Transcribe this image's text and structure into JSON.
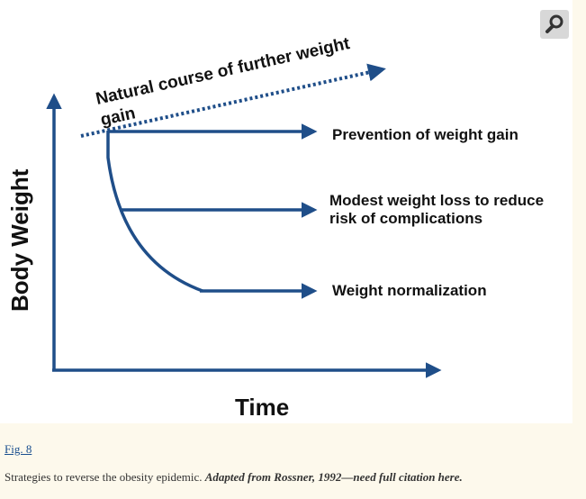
{
  "figure": {
    "texts": {
      "natural_course_line1": "Natural course of further weight",
      "natural_course_line2": "gain",
      "prevention": "Prevention of weight gain",
      "modest_line1": "Modest  weight loss to reduce",
      "modest_line2": "risk of complications",
      "normalization": "Weight normalization",
      "y_axis": "Body Weight",
      "x_axis": "Time"
    },
    "colors": {
      "arrow": "#1f4e89",
      "panel_background": "#ffffff"
    }
  },
  "zoom_button": {
    "icon": "magnifier-icon"
  },
  "fig_link": "Fig. 8",
  "caption": {
    "text": "Strategies to reverse the obesity epidemic. ",
    "emphasis": "Adapted from Rossner, 1992—need full citation here."
  },
  "page": {
    "background": "#fdf9ec"
  }
}
